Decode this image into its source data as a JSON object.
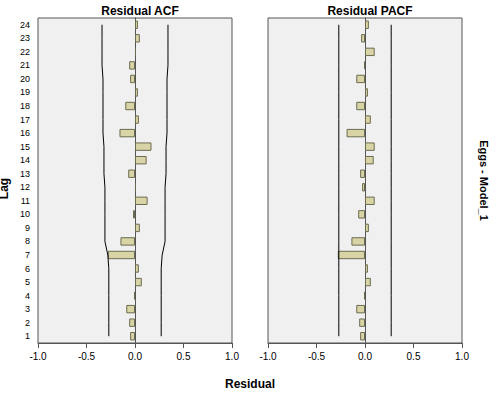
{
  "chart_data": [
    {
      "type": "bar",
      "title": "Residual ACF",
      "orientation": "horizontal",
      "grid": false,
      "categories": [
        1,
        2,
        3,
        4,
        5,
        6,
        7,
        8,
        9,
        10,
        11,
        12,
        13,
        14,
        15,
        16,
        17,
        18,
        19,
        20,
        21,
        22,
        23,
        24
      ],
      "values": [
        -0.05,
        -0.06,
        -0.09,
        -0.01,
        0.07,
        0.04,
        -0.28,
        -0.15,
        0.05,
        -0.02,
        0.13,
        0.01,
        -0.07,
        0.12,
        0.17,
        -0.16,
        0.04,
        -0.1,
        0.03,
        -0.05,
        -0.06,
        0.01,
        0.05,
        0.03
      ],
      "color": "#d9d4a6",
      "confidence_limits": {
        "type": "line",
        "color": "#000000",
        "upper": [
          0.27,
          0.27,
          0.27,
          0.27,
          0.27,
          0.27,
          0.28,
          0.31,
          0.31,
          0.31,
          0.31,
          0.31,
          0.32,
          0.32,
          0.32,
          0.33,
          0.33,
          0.33,
          0.33,
          0.33,
          0.34,
          0.34,
          0.34,
          0.34
        ],
        "lower": [
          -0.27,
          -0.27,
          -0.27,
          -0.27,
          -0.27,
          -0.27,
          -0.28,
          -0.31,
          -0.31,
          -0.31,
          -0.31,
          -0.31,
          -0.32,
          -0.32,
          -0.32,
          -0.33,
          -0.33,
          -0.33,
          -0.33,
          -0.33,
          -0.34,
          -0.34,
          -0.34,
          -0.34
        ]
      },
      "xlim": [
        -1,
        1
      ],
      "xticks": [
        {
          "value": -1,
          "label": "-1.0"
        },
        {
          "value": -0.5,
          "label": "-0.5"
        },
        {
          "value": 0,
          "label": "0.0"
        },
        {
          "value": 0.5,
          "label": "0.5"
        },
        {
          "value": 1,
          "label": "1.0"
        }
      ]
    },
    {
      "type": "bar",
      "title": "Residual PACF",
      "orientation": "horizontal",
      "grid": false,
      "tick_labels": "x",
      "categories": [
        1,
        2,
        3,
        4,
        5,
        6,
        7,
        8,
        9,
        10,
        11,
        12,
        13,
        14,
        15,
        16,
        17,
        18,
        19,
        20,
        21,
        22,
        23,
        24
      ],
      "values": [
        -0.05,
        -0.06,
        -0.09,
        -0.01,
        0.06,
        0.03,
        -0.28,
        -0.14,
        0.04,
        -0.07,
        0.1,
        -0.03,
        -0.05,
        0.09,
        0.1,
        -0.19,
        0.06,
        -0.09,
        0.03,
        -0.09,
        -0.01,
        0.1,
        -0.04,
        0.04
      ],
      "color": "#d9d4a6",
      "confidence_limits": {
        "type": "line",
        "color": "#000000",
        "upper": [
          0.27,
          0.27,
          0.27,
          0.27,
          0.27,
          0.27,
          0.27,
          0.27,
          0.27,
          0.27,
          0.27,
          0.27,
          0.27,
          0.27,
          0.27,
          0.27,
          0.27,
          0.27,
          0.27,
          0.27,
          0.27,
          0.27,
          0.27,
          0.27
        ],
        "lower": [
          -0.27,
          -0.27,
          -0.27,
          -0.27,
          -0.27,
          -0.27,
          -0.27,
          -0.27,
          -0.27,
          -0.27,
          -0.27,
          -0.27,
          -0.27,
          -0.27,
          -0.27,
          -0.27,
          -0.27,
          -0.27,
          -0.27,
          -0.27,
          -0.27,
          -0.27,
          -0.27,
          -0.27
        ]
      },
      "xlim": [
        -1,
        1
      ],
      "xticks": [
        {
          "value": -1,
          "label": "-1.0"
        },
        {
          "value": -0.5,
          "label": "-0.5"
        },
        {
          "value": 0,
          "label": "0.0"
        },
        {
          "value": 0.5,
          "label": "0.5"
        },
        {
          "value": 1,
          "label": "1.0"
        }
      ]
    }
  ],
  "x_label": "Residual",
  "y_label": "Lag",
  "panel_label": "Eggs - Model_1"
}
